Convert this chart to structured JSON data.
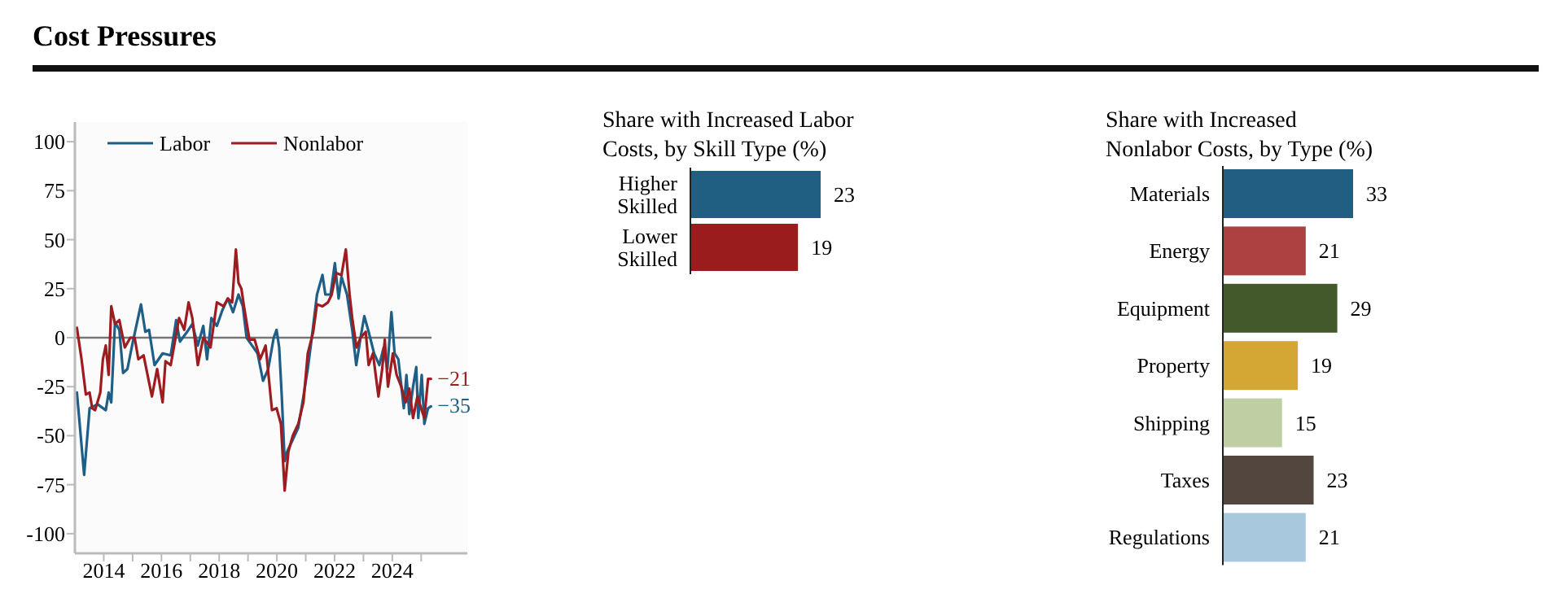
{
  "chart_data": [
    {
      "type": "line",
      "title": "Cost Pressures",
      "series": [
        {
          "name": "Labor",
          "color": "#1f5f87",
          "x": [
            2013.07,
            2013.32,
            2013.51,
            2013.79,
            2014.07,
            2014.17,
            2014.26,
            2014.39,
            2014.54,
            2014.67,
            2014.82,
            2015.01,
            2015.29,
            2015.44,
            2015.57,
            2015.76,
            2016.04,
            2016.32,
            2016.51,
            2016.64,
            2016.89,
            2017.07,
            2017.26,
            2017.45,
            2017.58,
            2017.73,
            2017.92,
            2018.11,
            2018.3,
            2018.48,
            2018.67,
            2018.82,
            2018.95,
            2019.14,
            2019.33,
            2019.52,
            2019.7,
            2019.89,
            2019.99,
            2020.08,
            2020.17,
            2020.27,
            2020.36,
            2020.55,
            2020.74,
            2020.92,
            2021.07,
            2021.21,
            2021.39,
            2021.58,
            2021.68,
            2021.86,
            2022.01,
            2022.14,
            2022.24,
            2022.43,
            2022.62,
            2022.75,
            2022.9,
            2023.03,
            2023.18,
            2023.37,
            2023.55,
            2023.7,
            2023.83,
            2023.97,
            2024.08,
            2024.21,
            2024.4,
            2024.49,
            2024.59,
            2024.72,
            2024.83,
            2024.9,
            2025.02,
            2025.11,
            2025.24,
            2025.34
          ],
          "values": [
            -28,
            -70,
            -36,
            -34,
            -37,
            -28,
            -33,
            8,
            4,
            -18,
            -16,
            -2,
            17,
            3,
            4,
            -14,
            -8,
            -9,
            9,
            -2,
            3,
            7,
            -4,
            6,
            -11,
            10,
            6,
            14,
            20,
            13,
            22,
            16,
            0,
            -4,
            -8,
            -22,
            -16,
            0,
            4,
            -5,
            -30,
            -63,
            -58,
            -52,
            -46,
            -30,
            -16,
            0,
            22,
            32,
            22,
            22,
            38,
            20,
            31,
            22,
            3,
            -14,
            0,
            11,
            3,
            -8,
            -14,
            -5,
            -16,
            13,
            -8,
            -11,
            -36,
            -19,
            -39,
            -25,
            -15,
            -41,
            -19,
            -44,
            -36,
            -35
          ]
        },
        {
          "name": "Nonlabor",
          "color": "#9e1b1f",
          "x": [
            2013.07,
            2013.23,
            2013.38,
            2013.51,
            2013.6,
            2013.7,
            2013.88,
            2013.97,
            2014.07,
            2014.17,
            2014.26,
            2014.39,
            2014.54,
            2014.73,
            2014.92,
            2015.07,
            2015.2,
            2015.38,
            2015.67,
            2015.85,
            2016.04,
            2016.14,
            2016.32,
            2016.61,
            2016.79,
            2016.94,
            2017.07,
            2017.26,
            2017.45,
            2017.7,
            2017.92,
            2018.15,
            2018.3,
            2018.45,
            2018.58,
            2018.67,
            2018.77,
            2018.86,
            2019.05,
            2019.23,
            2019.42,
            2019.61,
            2019.83,
            2019.99,
            2020.14,
            2020.27,
            2020.4,
            2020.55,
            2020.74,
            2020.92,
            2021.07,
            2021.26,
            2021.39,
            2021.58,
            2021.77,
            2021.9,
            2022.05,
            2022.24,
            2022.39,
            2022.52,
            2022.62,
            2022.76,
            2022.9,
            2023.08,
            2023.18,
            2023.33,
            2023.52,
            2023.65,
            2023.74,
            2023.85,
            2024.02,
            2024.15,
            2024.31,
            2024.46,
            2024.59,
            2024.72,
            2024.87,
            2025.02,
            2025.11,
            2025.24,
            2025.34
          ],
          "values": [
            5,
            -11,
            -29,
            -28,
            -36,
            -37,
            -28,
            -11,
            -4,
            -19,
            16,
            7,
            9,
            -5,
            0,
            0,
            -11,
            -9,
            -30,
            -16,
            -33,
            -12,
            -14,
            10,
            4,
            18,
            10,
            -14,
            0,
            -5,
            18,
            16,
            20,
            18,
            45,
            28,
            25,
            16,
            -1,
            -1,
            -11,
            -4,
            -37,
            -36,
            -44,
            -78,
            -58,
            -50,
            -44,
            -33,
            -8,
            3,
            17,
            16,
            18,
            22,
            33,
            32,
            45,
            22,
            9,
            -5,
            0,
            3,
            -14,
            -8,
            -30,
            -16,
            -1,
            -25,
            -8,
            -19,
            -25,
            -33,
            -26,
            -41,
            -30,
            -37,
            -41,
            -21,
            -21
          ]
        }
      ],
      "xlim": [
        2013,
        2026.6
      ],
      "xticks": [
        2014,
        {
          "value": 2015,
          "label": null
        },
        2016,
        {
          "value": 2017,
          "label": null
        },
        2018,
        {
          "value": 2019,
          "label": null
        },
        2020,
        {
          "value": 2021,
          "label": null
        },
        2022,
        {
          "value": 2023,
          "label": null
        },
        2024,
        {
          "value": 2025,
          "label": null
        }
      ],
      "ylim": [
        -110,
        110
      ],
      "yticks": [
        -100,
        -75,
        -50,
        -25,
        0,
        25,
        50,
        75,
        100
      ],
      "legend": "top left",
      "ref_lines": [
        {
          "axis": "y",
          "value": 0,
          "color": "#777777"
        }
      ],
      "annotations": [
        {
          "text": "−21",
          "x": 2025.34,
          "y": -21
        },
        {
          "text": "−35",
          "x": 2025.34,
          "y": -35
        }
      ]
    },
    {
      "type": "bar",
      "orientation": "horizontal",
      "title": "Share with Increased Labor Costs, by Skill Type (%)",
      "categories": [
        "Higher Skilled",
        "Lower Skilled"
      ],
      "values": [
        23,
        19
      ],
      "colors": [
        "#205e82",
        "#9b1c1c"
      ],
      "data_labels": true
    },
    {
      "type": "bar",
      "orientation": "horizontal",
      "title": "Share with Increased Nonlabor Costs, by Type (%)",
      "categories": [
        "Materials",
        "Energy",
        "Equipment",
        "Property",
        "Shipping",
        "Taxes",
        "Regulations"
      ],
      "values": [
        33,
        21,
        29,
        19,
        15,
        23,
        21
      ],
      "colors": [
        "#215e82",
        "#ad4141",
        "#43592b",
        "#d4a633",
        "#bfcfa3",
        "#52463e",
        "#a8c8de"
      ],
      "data_labels": true
    }
  ]
}
